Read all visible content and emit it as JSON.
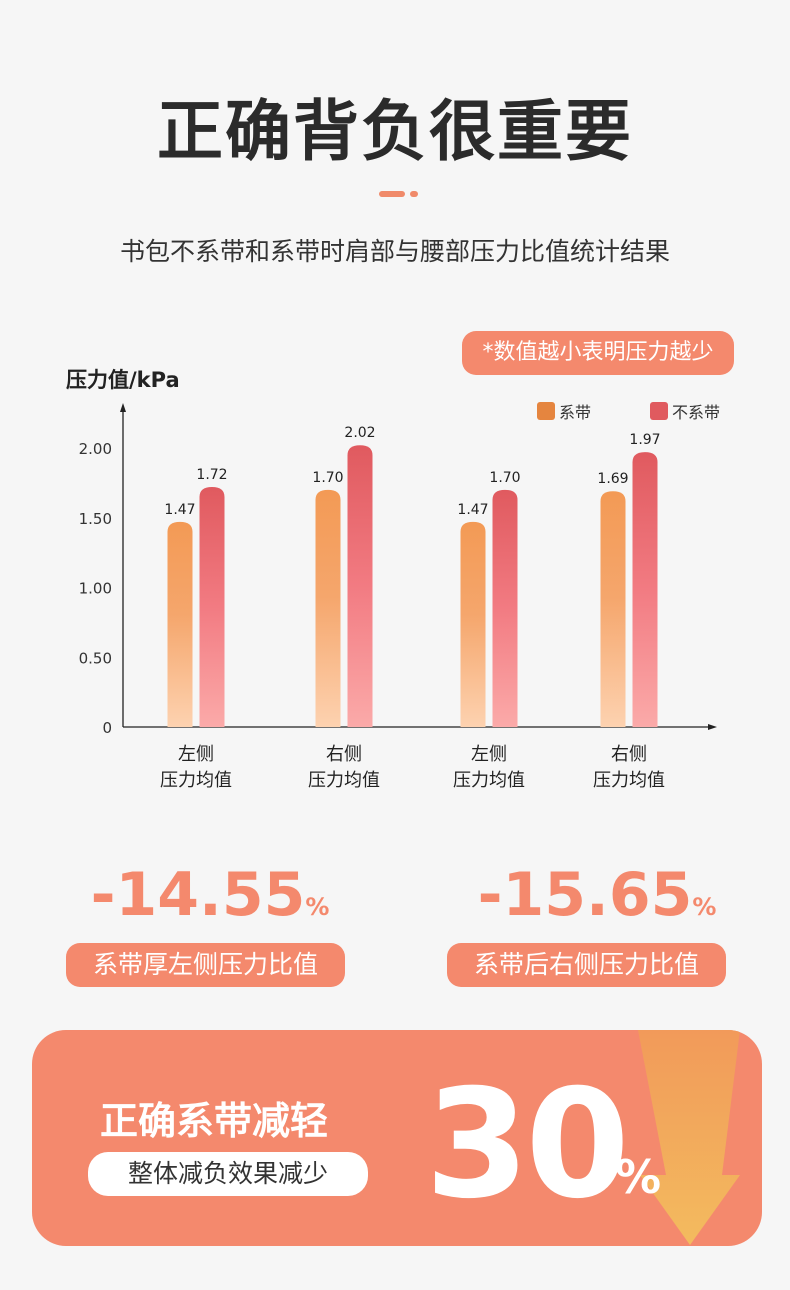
{
  "header": {
    "title": "正确背负很重要",
    "subtitle": "书包不系带和系带时肩部与腰部压力比值统计结果"
  },
  "note": "*数值越小表明压力越少",
  "colors": {
    "accent": "#f4896d",
    "strapped": "#e5853f",
    "unstrapped": "#e05a5f"
  },
  "chart_data": {
    "type": "bar",
    "ylabel": "压力值/kPa",
    "ylim": [
      0,
      2.0
    ],
    "yticks": [
      "0",
      "0.50",
      "1.00",
      "1.50",
      "2.00"
    ],
    "ytick_values": [
      0,
      0.5,
      1.0,
      1.5,
      2.0
    ],
    "categories": [
      [
        "左侧",
        "压力均值"
      ],
      [
        "右侧",
        "压力均值"
      ],
      [
        "左侧",
        "压力均值"
      ],
      [
        "右侧",
        "压力均值"
      ]
    ],
    "series": [
      {
        "name": "系带",
        "values": [
          1.47,
          1.7,
          1.47,
          1.69
        ],
        "labels": [
          "1.47",
          "1.70",
          "1.47",
          "1.69"
        ]
      },
      {
        "name": "不系带",
        "values": [
          1.72,
          2.02,
          1.7,
          1.97
        ],
        "labels": [
          "1.72",
          "2.02",
          "1.70",
          "1.97"
        ]
      }
    ],
    "legend": "top-right"
  },
  "stats": [
    {
      "value": "-14.55",
      "unit": "%",
      "label": "系带厚左侧压力比值"
    },
    {
      "value": "-15.65",
      "unit": "%",
      "label": "系带后右侧压力比值"
    }
  ],
  "banner": {
    "title": "正确系带减轻",
    "subtitle": "整体减负效果减少",
    "value": "30",
    "unit": "%"
  }
}
